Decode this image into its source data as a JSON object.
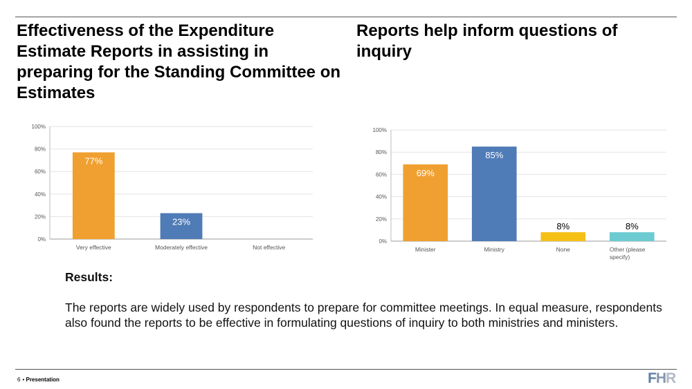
{
  "page": {
    "title_left": "Effectiveness of the Expenditure Estimate Reports in assisting in preparing for the Standing Committee on Estimates",
    "title_right": "Reports help inform questions of inquiry"
  },
  "results": {
    "heading": "Results:",
    "text": "The reports are widely used by respondents to prepare for committee meetings. In equal measure, respondents also found the reports to be effective in formulating questions of inquiry to both ministries and ministers."
  },
  "footer": {
    "page_number": "6",
    "label": "Presentation",
    "logo": {
      "f": "F",
      "h": "H",
      "r": "R"
    }
  },
  "chart_data": [
    {
      "type": "bar",
      "title": "",
      "xlabel": "",
      "ylabel": "",
      "categories": [
        "Very effective",
        "Moderately effective",
        "Not effective"
      ],
      "values": [
        77,
        23,
        0
      ],
      "data_labels": [
        "77%",
        "23%",
        ""
      ],
      "colors": [
        "#f0a030",
        "#4f7bb6",
        "#cccccc"
      ],
      "label_colors": [
        "#ffffff",
        "#ffffff",
        "#000000"
      ],
      "ylim": [
        0,
        100
      ],
      "yticks": [
        0,
        20,
        40,
        60,
        80,
        100
      ],
      "ytick_labels": [
        "0%",
        "20%",
        "40%",
        "60%",
        "80%",
        "100%"
      ],
      "grid": true
    },
    {
      "type": "bar",
      "title": "",
      "xlabel": "",
      "ylabel": "",
      "categories": [
        "Minister",
        "Ministry",
        "None",
        "Other (please specify)"
      ],
      "values": [
        69,
        85,
        8,
        8
      ],
      "data_labels": [
        "69%",
        "85%",
        "8%",
        "8%"
      ],
      "colors": [
        "#f0a030",
        "#4f7bb6",
        "#f5c016",
        "#6ccbd0"
      ],
      "label_colors": [
        "#ffffff",
        "#ffffff",
        "#000000",
        "#000000"
      ],
      "ylim": [
        0,
        100
      ],
      "yticks": [
        0,
        20,
        40,
        60,
        80,
        100
      ],
      "ytick_labels": [
        "0%",
        "20%",
        "40%",
        "60%",
        "80%",
        "100%"
      ],
      "grid": true
    }
  ]
}
